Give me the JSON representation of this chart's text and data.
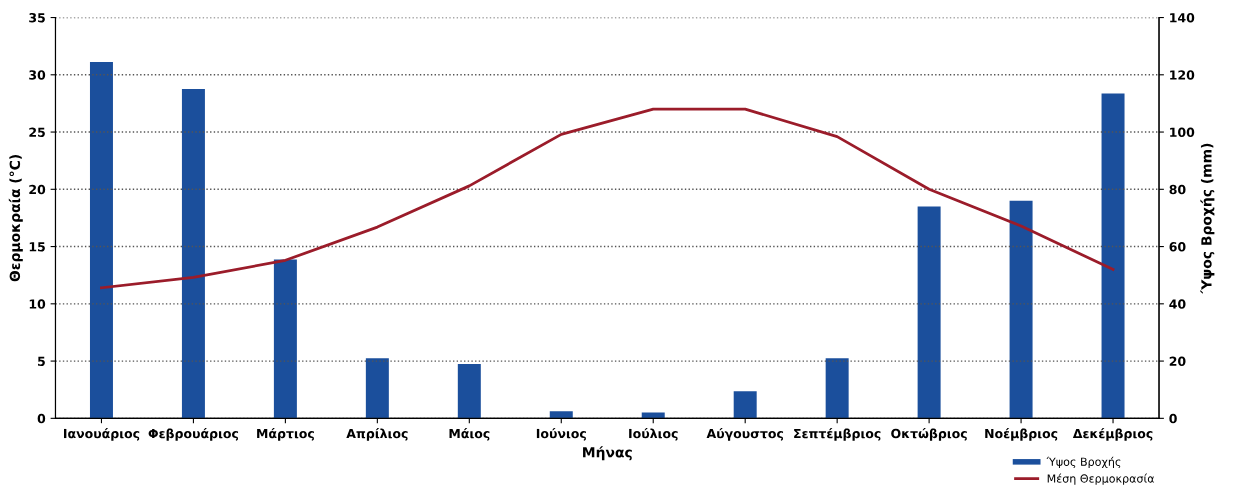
{
  "chart_data": {
    "type": "bar",
    "xlabel": "Μήνας",
    "ylabel": "Θερμοκραία (°C)",
    "y2label": "Ύψος Βροχής (mm)",
    "categories": [
      "Ιανουάριος",
      "Φεβρουάριος",
      "Μάρτιος",
      "Απρίλιος",
      "Μάιος",
      "Ιούνιος",
      "Ιούλιος",
      "Αύγουστος",
      "Σεπτέμβριος",
      "Οκτώβριος",
      "Νοέμβριος",
      "Δεκέμβριος"
    ],
    "series": [
      {
        "name": "Ύψος Βροχής",
        "axis": "y2",
        "color": "#1b4f9c",
        "values": [
          124.5,
          115,
          55.5,
          21,
          19,
          2.5,
          2,
          9.5,
          21,
          74,
          76,
          113.5
        ]
      },
      {
        "name": "Μέση Θερμοκρασία",
        "type": "line",
        "axis": "y",
        "color": "#9b1c2a",
        "values": [
          11.4,
          12.3,
          13.8,
          16.7,
          20.3,
          24.8,
          27,
          27,
          24.6,
          20,
          16.8,
          13
        ]
      }
    ],
    "ylim": [
      0,
      35
    ],
    "yticks": [
      0,
      5,
      10,
      15,
      20,
      25,
      30,
      35
    ],
    "y2lim": [
      0,
      140
    ],
    "y2ticks": [
      0,
      20,
      40,
      60,
      80,
      100,
      120,
      140
    ],
    "grid": "y",
    "legend": "bottom right",
    "marker": "none",
    "line_style": "solid"
  }
}
